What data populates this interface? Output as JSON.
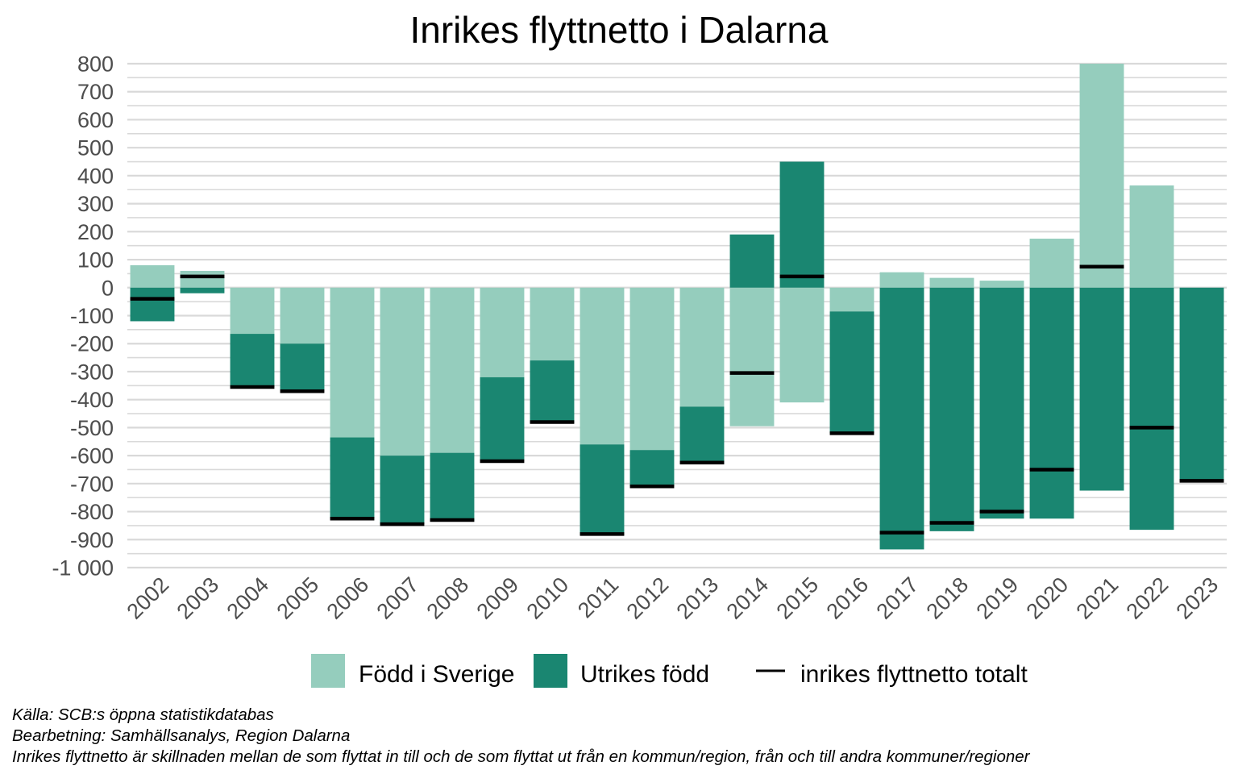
{
  "chart_data": {
    "type": "bar",
    "stacked": true,
    "title": "Inrikes flyttnetto i Dalarna",
    "xlabel": "",
    "ylabel": "",
    "ylim": [
      -1000,
      800
    ],
    "yticks": [
      800,
      700,
      600,
      500,
      400,
      300,
      200,
      100,
      0,
      -100,
      -200,
      -300,
      -400,
      -500,
      -600,
      -700,
      -800,
      -900,
      -1000
    ],
    "ytick_labels": [
      "800",
      "700",
      "600",
      "500",
      "400",
      "300",
      "200",
      "100",
      "0",
      "-100",
      "-200",
      "-300",
      "-400",
      "-500",
      "-600",
      "-700",
      "-800",
      "-900",
      "-1 000"
    ],
    "grid": true,
    "legend_position": "bottom",
    "categories": [
      "2002",
      "2003",
      "2004",
      "2005",
      "2006",
      "2007",
      "2008",
      "2009",
      "2010",
      "2011",
      "2012",
      "2013",
      "2014",
      "2015",
      "2016",
      "2017",
      "2018",
      "2019",
      "2020",
      "2021",
      "2022",
      "2023"
    ],
    "series": [
      {
        "name": "Född i Sverige",
        "color": "#95cdbd",
        "type": "bar",
        "values": [
          80,
          60,
          -165,
          -200,
          -535,
          -600,
          -590,
          -320,
          -260,
          -560,
          -580,
          -425,
          -495,
          -410,
          -85,
          55,
          35,
          25,
          175,
          800,
          365,
          0
        ]
      },
      {
        "name": "Utrikes född",
        "color": "#1a8671",
        "type": "bar",
        "values": [
          -120,
          -20,
          -190,
          -165,
          -290,
          -245,
          -245,
          -295,
          -225,
          -325,
          -130,
          -205,
          190,
          450,
          -435,
          -935,
          -870,
          -825,
          -825,
          -725,
          -865,
          -690
        ]
      },
      {
        "name": "inrikes flyttnetto totalt",
        "color": "#000000",
        "type": "marker",
        "values": [
          -40,
          40,
          -355,
          -370,
          -825,
          -845,
          -830,
          -620,
          -480,
          -880,
          -710,
          -625,
          -305,
          40,
          -520,
          -875,
          -840,
          -800,
          -650,
          75,
          -500,
          -690
        ]
      }
    ]
  },
  "captions": [
    "Källa: SCB:s öppna statistikdatabas",
    "Bearbetning: Samhällsanalys, Region Dalarna",
    "Inrikes flyttnetto är skillnaden mellan de som flyttat in till och de som flyttat ut från en kommun/region, från och till andra kommuner/regioner"
  ]
}
